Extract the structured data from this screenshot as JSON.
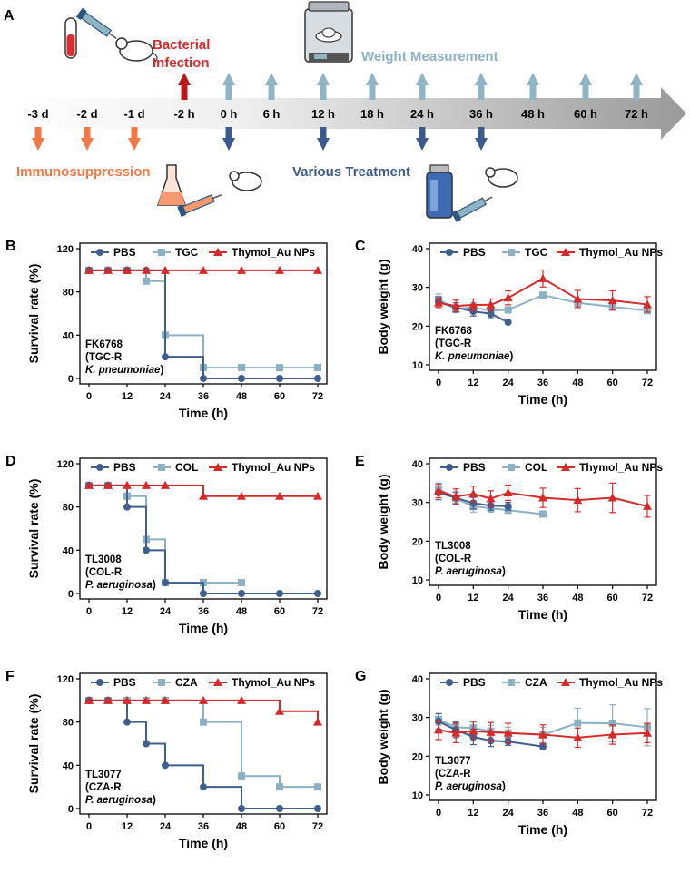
{
  "colors": {
    "pbs": "#3f5f8f",
    "treat": "#8cb0c4",
    "thymol": "#d42a2a",
    "orange": "#f07a45",
    "red_arrow": "#b81818",
    "light_arrow": "#8fb4c5",
    "dark_arrow": "#3d5a8c"
  },
  "timeline": {
    "panel": "A",
    "ticks": [
      "-3 d",
      "-2 d",
      "-1 d",
      "-2 h",
      "0 h",
      "6 h",
      "12 h",
      "18 h",
      "24 h",
      "36 h",
      "48 h",
      "60 h",
      "72 h"
    ],
    "infection_label_line1": "Bacterial",
    "infection_label_line2": "Infection",
    "weight_label": "Weight Measurement",
    "immuno_label": "Immunosuppression",
    "treatment_label": "Various Treatment",
    "icons": [
      "syringe-mouse-icon",
      "balance-icon",
      "flask-mouse-icon",
      "vial-mouse-icon"
    ]
  },
  "chart_data": [
    {
      "panel": "B",
      "type": "line",
      "step": true,
      "ylabel": "Survival rate (%)",
      "xlabel": "Time (h)",
      "ylim": [
        0,
        120
      ],
      "yticks": [
        0,
        40,
        80,
        120
      ],
      "xlim": [
        0,
        72
      ],
      "xticks": [
        0,
        12,
        24,
        36,
        48,
        60,
        72
      ],
      "annotation": [
        "FK6768",
        "(TGC-R",
        "K. pneumoniae)"
      ],
      "series": [
        {
          "name": "PBS",
          "marker": "circle",
          "x": [
            0,
            6,
            12,
            18,
            24,
            36,
            48,
            60,
            72
          ],
          "y": [
            100,
            100,
            100,
            100,
            20,
            0,
            0,
            0,
            0
          ]
        },
        {
          "name": "TGC",
          "marker": "square",
          "x": [
            0,
            6,
            12,
            18,
            24,
            36,
            48,
            60,
            72
          ],
          "y": [
            100,
            100,
            100,
            90,
            40,
            10,
            10,
            10,
            10
          ]
        },
        {
          "name": "Thymol_Au NPs",
          "marker": "triangle",
          "x": [
            0,
            6,
            12,
            18,
            24,
            36,
            48,
            60,
            72
          ],
          "y": [
            100,
            100,
            100,
            100,
            100,
            100,
            100,
            100,
            100
          ]
        }
      ]
    },
    {
      "panel": "C",
      "type": "line",
      "step": false,
      "ylabel": "Body weight (g)",
      "xlabel": "Time (h)",
      "ylim": [
        10,
        40
      ],
      "yticks": [
        10,
        20,
        30,
        40
      ],
      "xlim": [
        0,
        72
      ],
      "xticks": [
        0,
        12,
        24,
        36,
        48,
        60,
        72
      ],
      "annotation": [
        "FK6768",
        "(TGC-R",
        "K. pneumoniae)"
      ],
      "series": [
        {
          "name": "PBS",
          "marker": "circle",
          "x": [
            0,
            6,
            12,
            18,
            24
          ],
          "y": [
            26.2,
            24.8,
            23.8,
            23.2,
            21.0
          ],
          "err": [
            1.4,
            1.2,
            1.2,
            1.0,
            0
          ]
        },
        {
          "name": "TGC",
          "marker": "square",
          "x": [
            0,
            6,
            12,
            18,
            24,
            36,
            48,
            60,
            72
          ],
          "y": [
            26.8,
            24.5,
            24.8,
            24.0,
            24.2,
            28.0,
            26.0,
            25.0,
            24.0
          ],
          "err": [
            1.5,
            1.0,
            1.2,
            1.0,
            0.8,
            0.5,
            1.0,
            0.8,
            0.6
          ]
        },
        {
          "name": "Thymol_Au NPs",
          "marker": "triangle",
          "x": [
            0,
            6,
            12,
            18,
            24,
            36,
            48,
            60,
            72
          ],
          "y": [
            26.0,
            25.2,
            25.5,
            25.5,
            27.3,
            32.3,
            27.0,
            26.6,
            25.6
          ],
          "err": [
            1.2,
            1.5,
            1.5,
            1.5,
            1.8,
            2.2,
            2.2,
            2.5,
            2.0
          ]
        }
      ]
    },
    {
      "panel": "D",
      "type": "line",
      "step": true,
      "ylabel": "Survival rate (%)",
      "xlabel": "Time (h)",
      "ylim": [
        0,
        120
      ],
      "yticks": [
        0,
        40,
        80,
        120
      ],
      "xlim": [
        0,
        72
      ],
      "xticks": [
        0,
        12,
        24,
        36,
        48,
        60,
        72
      ],
      "annotation": [
        "TL3008",
        "(COL-R",
        "P. aeruginosa)"
      ],
      "series": [
        {
          "name": "PBS",
          "marker": "circle",
          "x": [
            0,
            6,
            12,
            18,
            24,
            36,
            48,
            60,
            72
          ],
          "y": [
            100,
            100,
            80,
            40,
            10,
            0,
            0,
            0,
            0
          ]
        },
        {
          "name": "COL",
          "marker": "square",
          "x": [
            0,
            6,
            12,
            18,
            24,
            36,
            48
          ],
          "y": [
            100,
            100,
            90,
            50,
            10,
            10,
            10
          ]
        },
        {
          "name": "Thymol_Au NPs",
          "marker": "triangle",
          "x": [
            0,
            6,
            12,
            18,
            24,
            36,
            48,
            60,
            72
          ],
          "y": [
            100,
            100,
            100,
            100,
            100,
            90,
            90,
            90,
            90
          ]
        }
      ]
    },
    {
      "panel": "E",
      "type": "line",
      "step": false,
      "ylabel": "Body weight (g)",
      "xlabel": "Time (h)",
      "ylim": [
        10,
        40
      ],
      "yticks": [
        10,
        20,
        30,
        40
      ],
      "xlim": [
        0,
        72
      ],
      "xticks": [
        0,
        12,
        24,
        36,
        48,
        60,
        72
      ],
      "annotation": [
        "TL3008",
        "(COL-R",
        "P. aeruginosa)"
      ],
      "series": [
        {
          "name": "PBS",
          "marker": "circle",
          "x": [
            0,
            6,
            12,
            18,
            24
          ],
          "y": [
            32.5,
            31.2,
            29.8,
            29.2,
            29.0
          ],
          "err": [
            1.8,
            1.5,
            1.5,
            1.2,
            1.0
          ]
        },
        {
          "name": "COL",
          "marker": "square",
          "x": [
            0,
            6,
            12,
            18,
            24,
            36
          ],
          "y": [
            33.5,
            31.0,
            29.0,
            28.5,
            28.0,
            27.0
          ],
          "err": [
            1.5,
            1.5,
            1.5,
            1.0,
            0.8,
            0.5
          ]
        },
        {
          "name": "Thymol_Au NPs",
          "marker": "triangle",
          "x": [
            0,
            6,
            12,
            18,
            24,
            36,
            48,
            60,
            72
          ],
          "y": [
            33.0,
            31.5,
            32.2,
            31.0,
            32.5,
            31.2,
            30.6,
            31.2,
            29.0
          ],
          "err": [
            1.8,
            2.0,
            2.0,
            2.0,
            2.0,
            2.5,
            3.0,
            3.8,
            2.8
          ]
        }
      ]
    },
    {
      "panel": "F",
      "type": "line",
      "step": true,
      "ylabel": "Survival rate (%)",
      "xlabel": "Time (h)",
      "ylim": [
        0,
        120
      ],
      "yticks": [
        0,
        40,
        80,
        120
      ],
      "xlim": [
        0,
        72
      ],
      "xticks": [
        0,
        12,
        24,
        36,
        48,
        60,
        72
      ],
      "annotation": [
        "TL3077",
        "(CZA-R",
        "P. aeruginosa)"
      ],
      "series": [
        {
          "name": "PBS",
          "marker": "circle",
          "x": [
            0,
            6,
            12,
            18,
            24,
            36,
            48,
            60,
            72
          ],
          "y": [
            100,
            100,
            80,
            60,
            40,
            20,
            0,
            0,
            0
          ]
        },
        {
          "name": "CZA",
          "marker": "square",
          "x": [
            0,
            6,
            12,
            18,
            24,
            36,
            48,
            60,
            72
          ],
          "y": [
            100,
            100,
            100,
            100,
            100,
            80,
            30,
            20,
            20
          ]
        },
        {
          "name": "Thymol_Au NPs",
          "marker": "triangle",
          "x": [
            0,
            6,
            12,
            18,
            24,
            36,
            48,
            60,
            72
          ],
          "y": [
            100,
            100,
            100,
            100,
            100,
            100,
            100,
            90,
            80
          ]
        }
      ]
    },
    {
      "panel": "G",
      "type": "line",
      "step": false,
      "ylabel": "Body weight (g)",
      "xlabel": "Time (h)",
      "ylim": [
        10,
        40
      ],
      "yticks": [
        10,
        20,
        30,
        40
      ],
      "xlim": [
        0,
        72
      ],
      "xticks": [
        0,
        12,
        24,
        36,
        48,
        60,
        72
      ],
      "annotation": [
        "TL3077",
        "(CZA-R",
        "P. aeruginosa)"
      ],
      "series": [
        {
          "name": "PBS",
          "marker": "circle",
          "x": [
            0,
            6,
            12,
            18,
            24,
            36
          ],
          "y": [
            29.0,
            26.8,
            25.0,
            24.0,
            23.8,
            22.5
          ],
          "err": [
            2.0,
            2.0,
            2.0,
            1.5,
            1.0,
            0.8
          ]
        },
        {
          "name": "CZA",
          "marker": "square",
          "x": [
            0,
            6,
            12,
            18,
            24,
            36,
            48,
            60,
            72
          ],
          "y": [
            29.5,
            27.5,
            27.3,
            26.5,
            26.0,
            25.5,
            28.6,
            28.5,
            27.5
          ],
          "err": [
            1.5,
            1.5,
            1.5,
            1.5,
            1.5,
            2.0,
            3.8,
            4.8,
            4.8
          ]
        },
        {
          "name": "Thymol_Au NPs",
          "marker": "triangle",
          "x": [
            0,
            6,
            12,
            18,
            24,
            36,
            48,
            60,
            72
          ],
          "y": [
            26.8,
            26.0,
            26.5,
            26.2,
            26.0,
            25.6,
            24.8,
            25.6,
            26.0
          ],
          "err": [
            2.5,
            2.5,
            2.5,
            2.5,
            2.5,
            2.5,
            2.5,
            2.5,
            2.5
          ]
        }
      ]
    }
  ]
}
